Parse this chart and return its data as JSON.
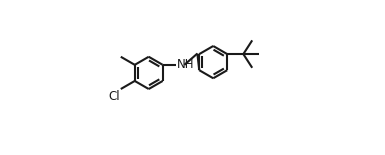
{
  "bg_color": "#ffffff",
  "line_color": "#1a1a1a",
  "line_width": 1.5,
  "figsize": [
    3.85,
    1.55
  ],
  "dpi": 100,
  "xlim": [
    0.0,
    1.0
  ],
  "ylim": [
    0.0,
    1.0
  ],
  "NH_label": "NH",
  "Cl_label": "Cl",
  "NH_fontsize": 8.5,
  "Cl_fontsize": 8.5
}
